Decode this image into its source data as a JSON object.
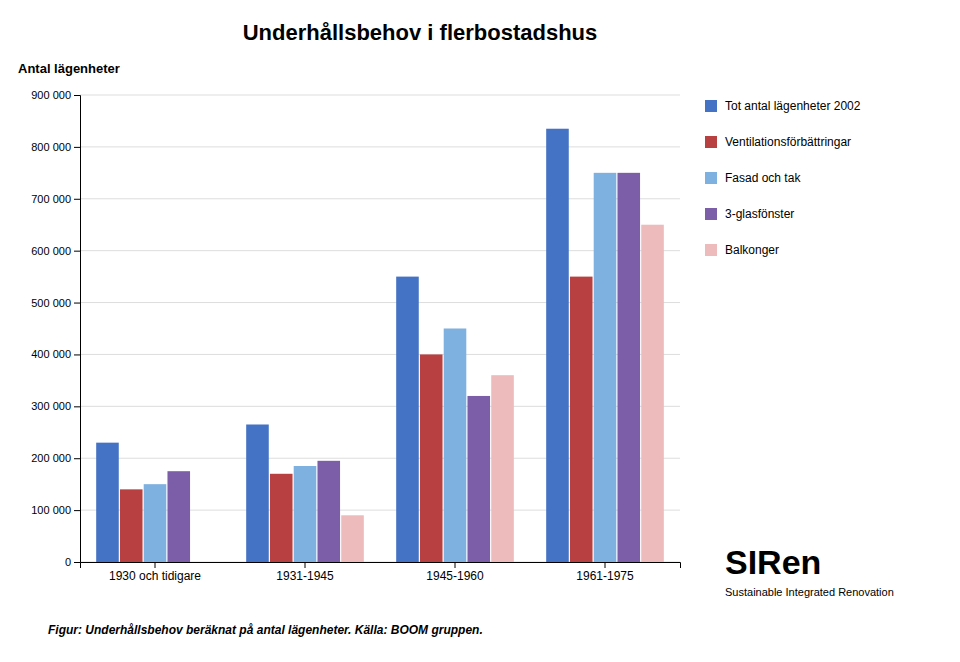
{
  "chart_data": {
    "type": "bar",
    "title": "Underhållsbehov i flerbostadshus",
    "ylabel": "Antal lägenheter",
    "categories": [
      "1930 och tidigare",
      "1931-1945",
      "1945-1960",
      "1961-1975"
    ],
    "series": [
      {
        "name": "Tot antal lägenheter 2002",
        "color": "#4472C4",
        "values": [
          230000,
          265000,
          550000,
          835000
        ]
      },
      {
        "name": "Ventilationsförbättringar",
        "color": "#B94040",
        "values": [
          140000,
          170000,
          400000,
          550000
        ]
      },
      {
        "name": "Fasad och tak",
        "color": "#7EB0E0",
        "values": [
          150000,
          185000,
          450000,
          750000
        ]
      },
      {
        "name": "3-glasfönster",
        "color": "#7B5EA7",
        "values": [
          175000,
          195000,
          320000,
          750000
        ]
      },
      {
        "name": "Balkonger",
        "color": "#EDBBBB",
        "values": [
          0,
          90000,
          360000,
          650000
        ]
      }
    ],
    "ylim": [
      0,
      900000
    ],
    "yticks": [
      0,
      {
        "value": 100000,
        "label": "100 000"
      },
      {
        "value": 200000,
        "label": "200 000"
      },
      {
        "value": 300000,
        "label": "300 000"
      },
      {
        "value": 400000,
        "label": "400 000"
      },
      {
        "value": 500000,
        "label": "500 000"
      },
      {
        "value": 600000,
        "label": "600 000"
      },
      {
        "value": 700000,
        "label": "700 000"
      },
      {
        "value": 800000,
        "label": "800 000"
      },
      {
        "value": 900000,
        "label": "900 000"
      }
    ],
    "grid": true,
    "legend": "right",
    "caption": "Figur: Underhållsbehov beräknat på antal lägenheter. Källa: BOOM gruppen.",
    "annotations": [
      "SIRen",
      "Sustainable Integrated Renovation"
    ]
  }
}
